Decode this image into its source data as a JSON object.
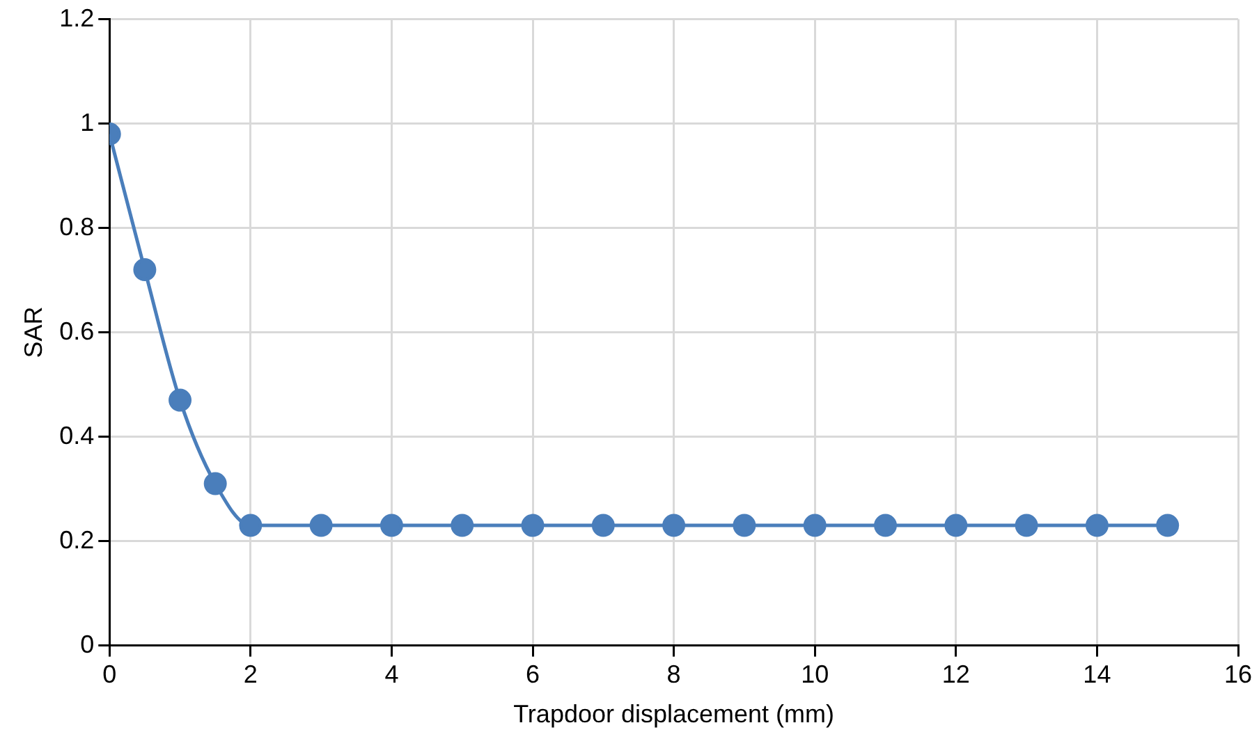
{
  "chart_data": {
    "type": "line",
    "xlabel": "Trapdoor displacement (mm)",
    "ylabel": "SAR",
    "x": [
      0,
      0.5,
      1,
      1.5,
      2,
      3,
      4,
      5,
      6,
      7,
      8,
      9,
      10,
      11,
      12,
      13,
      14,
      15
    ],
    "series": [
      {
        "color": "#4a7ebb",
        "values": [
          0.98,
          0.72,
          0.47,
          0.31,
          0.23,
          0.23,
          0.23,
          0.23,
          0.23,
          0.23,
          0.23,
          0.23,
          0.23,
          0.23,
          0.23,
          0.23,
          0.23,
          0.23
        ]
      }
    ],
    "xlim": [
      0,
      16
    ],
    "xticks": [
      0,
      2,
      4,
      6,
      8,
      10,
      12,
      14,
      16
    ],
    "ylim": [
      0,
      1.2
    ],
    "yticks": [
      0,
      0.2,
      0.4,
      0.6,
      0.8,
      1,
      1.2
    ],
    "grid": true,
    "marker": "circle",
    "line_style": "solid",
    "legend": false
  }
}
